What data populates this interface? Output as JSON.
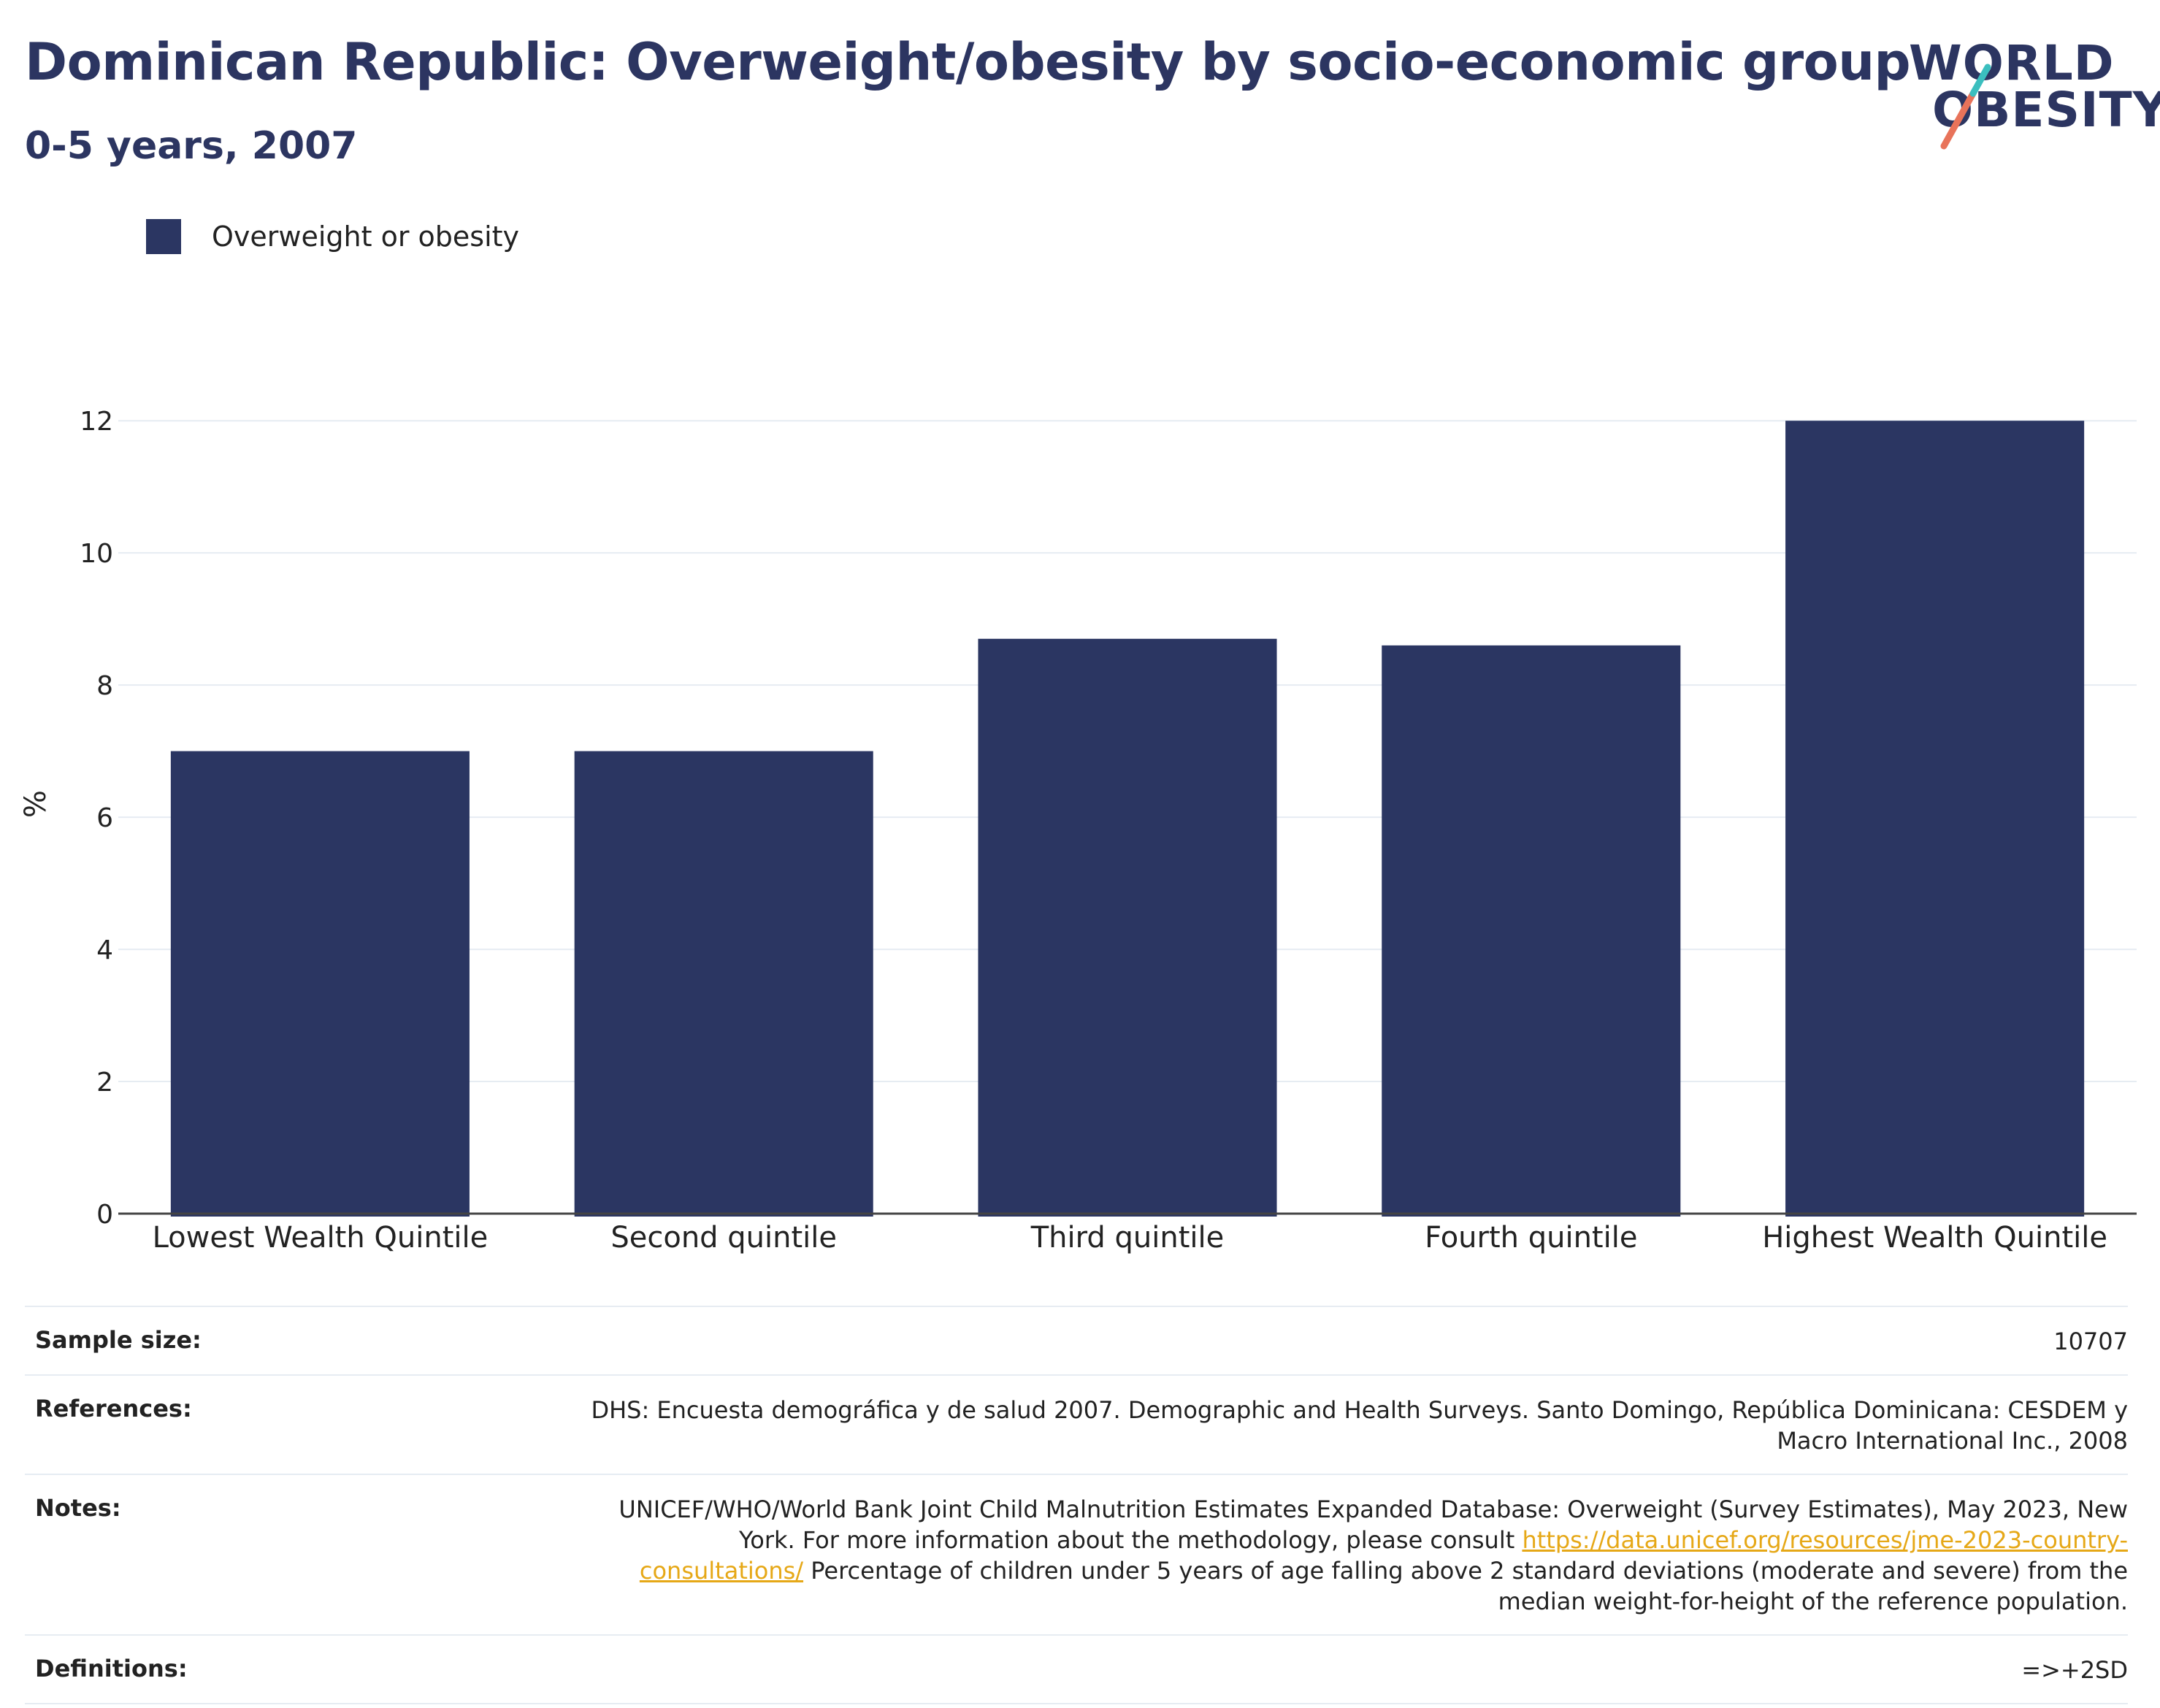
{
  "header": {
    "title": "Dominican Republic: Overweight/obesity by socio-economic group",
    "subtitle": "0-5 years, 2007"
  },
  "logo": {
    "line1": "WORLD",
    "line2": "OBESITY",
    "accent_colors": [
      "#3bbfbf",
      "#e8735a"
    ]
  },
  "legend": {
    "items": [
      {
        "label": "Overweight or obesity",
        "color": "#2b3662"
      }
    ]
  },
  "chart_data": {
    "type": "bar",
    "categories": [
      "Lowest Wealth Quintile",
      "Second quintile",
      "Third quintile",
      "Fourth quintile",
      "Highest Wealth Quintile"
    ],
    "series": [
      {
        "name": "Overweight or obesity",
        "values": [
          7.0,
          7.0,
          8.7,
          8.6,
          12.0
        ],
        "color": "#2b3662"
      }
    ],
    "ylabel": "%",
    "ylim": [
      0,
      12.4
    ],
    "yticks": [
      0,
      2,
      4,
      6,
      8,
      10,
      12
    ],
    "grid": true,
    "legend_position": "top-left"
  },
  "info": {
    "sample_size": {
      "label": "Sample size:",
      "value": "10707"
    },
    "references": {
      "label": "References:",
      "value": "DHS: Encuesta demográfica y de salud 2007. Demographic and Health Surveys. Santo Domingo, República Dominicana: CESDEM y Macro International Inc., 2008"
    },
    "notes": {
      "label": "Notes:",
      "text_before": "UNICEF/WHO/World Bank Joint Child Malnutrition Estimates Expanded Database: Overweight (Survey Estimates), May 2023, New York. For more information about the methodology, please consult ",
      "link": "https://data.unicef.org/resources/jme-2023-country-consultations/",
      "text_after": " Percentage of children under 5 years of age falling above 2 standard deviations (moderate and severe) from the median weight-for-height of the reference population."
    },
    "definitions": {
      "label": "Definitions:",
      "value": "=>+2SD"
    }
  }
}
